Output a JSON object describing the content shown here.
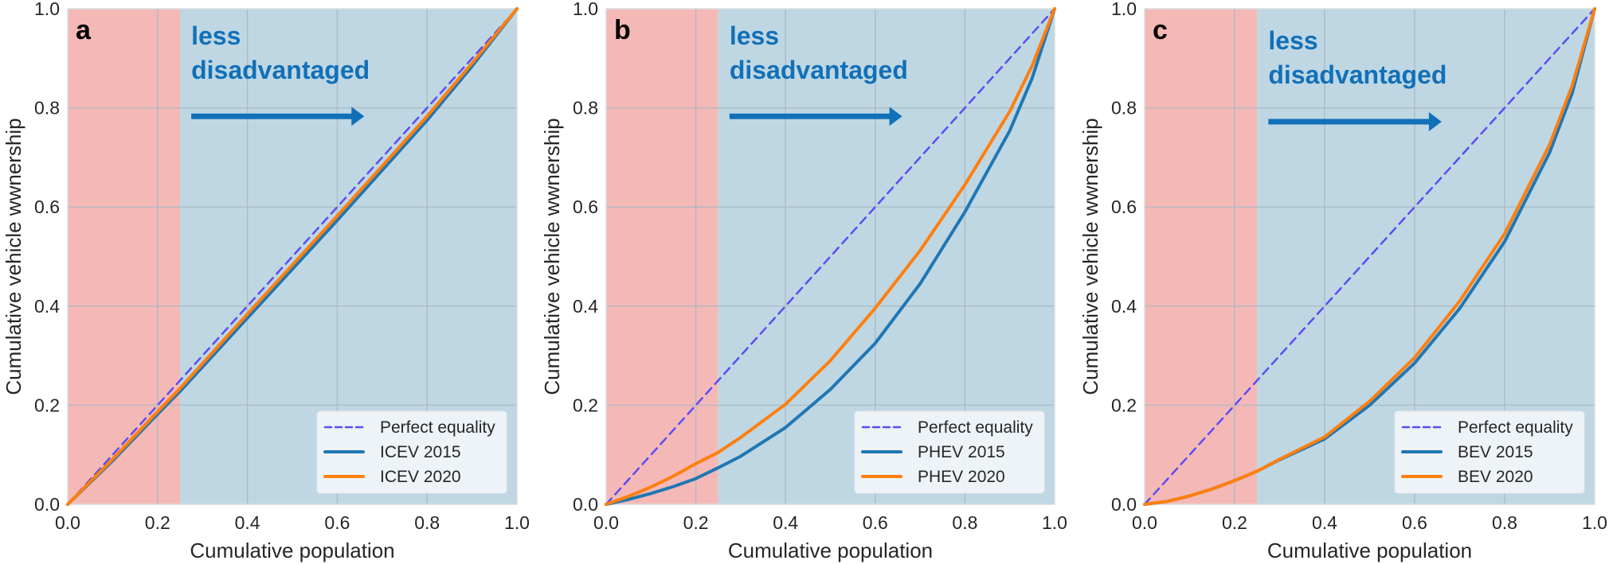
{
  "figure": {
    "background": "#ffffff",
    "colors": {
      "disadvantaged_region": "#f4b9b7",
      "non_disadvantaged_region": "#bfd7e3",
      "grid": "#a9b8c2",
      "perfect_equality": "#5b4cf5",
      "series_2015": "#1f77b4",
      "series_2020": "#ff7f0e",
      "annotation": "#1170b8",
      "legend_bg": "#f2f6f8"
    }
  },
  "chart_data": [
    {
      "type": "line",
      "panel_label": "a",
      "title": "",
      "xlabel": "Cumulative population",
      "ylabel": "Cumulative vehicle wwnership",
      "xlim": [
        0.0,
        1.0
      ],
      "ylim": [
        0.0,
        1.0
      ],
      "xticks": [
        "0.0",
        "0.2",
        "0.4",
        "0.6",
        "0.8",
        "1.0"
      ],
      "yticks": [
        "0.0",
        "0.2",
        "0.4",
        "0.6",
        "0.8",
        "1.0"
      ],
      "grid": true,
      "shaded_regions": [
        {
          "name": "disadvantaged",
          "x_range": [
            0.0,
            0.25
          ]
        },
        {
          "name": "less-disadvantaged",
          "x_range": [
            0.25,
            1.0
          ]
        }
      ],
      "annotation": {
        "lines": [
          "less",
          "disadvantaged"
        ],
        "arrow_from": [
          0.275,
          0.783
        ],
        "arrow_to": [
          0.66,
          0.783
        ],
        "text_x": 0.275,
        "text_y_top": 0.96
      },
      "legend": {
        "placement": "lower-right",
        "entries": [
          "Perfect equality",
          "ICEV 2015",
          "ICEV 2020"
        ]
      },
      "series": [
        {
          "name": "Perfect equality",
          "style": "dashed",
          "x": [
            0.0,
            1.0
          ],
          "y": [
            0.0,
            1.0
          ]
        },
        {
          "name": "ICEV 2015",
          "style": "solid",
          "x": [
            0.0,
            0.1,
            0.2,
            0.25,
            0.4,
            0.6,
            0.8,
            0.9,
            1.0
          ],
          "y": [
            0.0,
            0.088,
            0.182,
            0.228,
            0.376,
            0.573,
            0.775,
            0.884,
            1.0
          ]
        },
        {
          "name": "ICEV 2020",
          "style": "solid",
          "x": [
            0.0,
            0.1,
            0.2,
            0.25,
            0.4,
            0.6,
            0.8,
            0.9,
            1.0
          ],
          "y": [
            0.0,
            0.091,
            0.187,
            0.234,
            0.384,
            0.582,
            0.783,
            0.89,
            1.0
          ]
        }
      ]
    },
    {
      "type": "line",
      "panel_label": "b",
      "title": "",
      "xlabel": "Cumulative population",
      "ylabel": "Cumulative vehicle wwnership",
      "xlim": [
        0.0,
        1.0
      ],
      "ylim": [
        0.0,
        1.0
      ],
      "xticks": [
        "0.0",
        "0.2",
        "0.4",
        "0.6",
        "0.8",
        "1.0"
      ],
      "yticks": [
        "0.0",
        "0.2",
        "0.4",
        "0.6",
        "0.8",
        "1.0"
      ],
      "grid": true,
      "shaded_regions": [
        {
          "name": "disadvantaged",
          "x_range": [
            0.0,
            0.25
          ]
        },
        {
          "name": "less-disadvantaged",
          "x_range": [
            0.25,
            1.0
          ]
        }
      ],
      "annotation": {
        "lines": [
          "less",
          "disadvantaged"
        ],
        "arrow_from": [
          0.275,
          0.783
        ],
        "arrow_to": [
          0.66,
          0.783
        ],
        "text_x": 0.275,
        "text_y_top": 0.96
      },
      "legend": {
        "placement": "lower-right",
        "entries": [
          "Perfect equality",
          "PHEV 2015",
          "PHEV 2020"
        ]
      },
      "series": [
        {
          "name": "Perfect equality",
          "style": "dashed",
          "x": [
            0.0,
            1.0
          ],
          "y": [
            0.0,
            1.0
          ]
        },
        {
          "name": "PHEV 2015",
          "style": "solid",
          "x": [
            0.0,
            0.05,
            0.1,
            0.15,
            0.2,
            0.25,
            0.3,
            0.4,
            0.5,
            0.6,
            0.7,
            0.8,
            0.9,
            0.95,
            1.0
          ],
          "y": [
            0.0,
            0.01,
            0.022,
            0.036,
            0.052,
            0.074,
            0.097,
            0.155,
            0.232,
            0.325,
            0.445,
            0.59,
            0.754,
            0.86,
            1.0
          ]
        },
        {
          "name": "PHEV 2020",
          "style": "solid",
          "x": [
            0.0,
            0.05,
            0.1,
            0.15,
            0.2,
            0.25,
            0.3,
            0.4,
            0.5,
            0.6,
            0.7,
            0.8,
            0.9,
            0.95,
            1.0
          ],
          "y": [
            0.0,
            0.016,
            0.035,
            0.057,
            0.082,
            0.105,
            0.135,
            0.202,
            0.29,
            0.396,
            0.512,
            0.645,
            0.793,
            0.885,
            1.0
          ]
        }
      ]
    },
    {
      "type": "line",
      "panel_label": "c",
      "title": "",
      "xlabel": "Cumulative population",
      "ylabel": "Cumulative vehicle wwnership",
      "xlim": [
        0.0,
        1.0
      ],
      "ylim": [
        0.0,
        1.0
      ],
      "xticks": [
        "0.0",
        "0.2",
        "0.4",
        "0.6",
        "0.8",
        "1.0"
      ],
      "yticks": [
        "0.0",
        "0.2",
        "0.4",
        "0.6",
        "0.8",
        "1.0"
      ],
      "grid": true,
      "shaded_regions": [
        {
          "name": "disadvantaged",
          "x_range": [
            0.0,
            0.25
          ]
        },
        {
          "name": "less-disadvantaged",
          "x_range": [
            0.25,
            1.0
          ]
        }
      ],
      "annotation": {
        "lines": [
          "less",
          "disadvantaged"
        ],
        "arrow_from": [
          0.275,
          0.772
        ],
        "arrow_to": [
          0.66,
          0.772
        ],
        "text_x": 0.275,
        "text_y_top": 0.95
      },
      "legend": {
        "placement": "lower-right",
        "entries": [
          "Perfect equality",
          "BEV 2015",
          "BEV 2020"
        ]
      },
      "series": [
        {
          "name": "Perfect equality",
          "style": "dashed",
          "x": [
            0.0,
            1.0
          ],
          "y": [
            0.0,
            1.0
          ]
        },
        {
          "name": "BEV 2015",
          "style": "solid",
          "x": [
            0.0,
            0.05,
            0.1,
            0.15,
            0.2,
            0.25,
            0.3,
            0.4,
            0.5,
            0.6,
            0.7,
            0.8,
            0.9,
            0.95,
            1.0
          ],
          "y": [
            0.0,
            0.006,
            0.017,
            0.031,
            0.048,
            0.067,
            0.09,
            0.132,
            0.2,
            0.285,
            0.395,
            0.53,
            0.71,
            0.83,
            1.0
          ]
        },
        {
          "name": "BEV 2020",
          "style": "solid",
          "x": [
            0.0,
            0.05,
            0.1,
            0.15,
            0.2,
            0.25,
            0.3,
            0.4,
            0.5,
            0.6,
            0.7,
            0.8,
            0.9,
            0.95,
            1.0
          ],
          "y": [
            0.0,
            0.006,
            0.017,
            0.031,
            0.048,
            0.067,
            0.091,
            0.136,
            0.208,
            0.296,
            0.41,
            0.546,
            0.726,
            0.845,
            1.0
          ]
        }
      ]
    }
  ]
}
